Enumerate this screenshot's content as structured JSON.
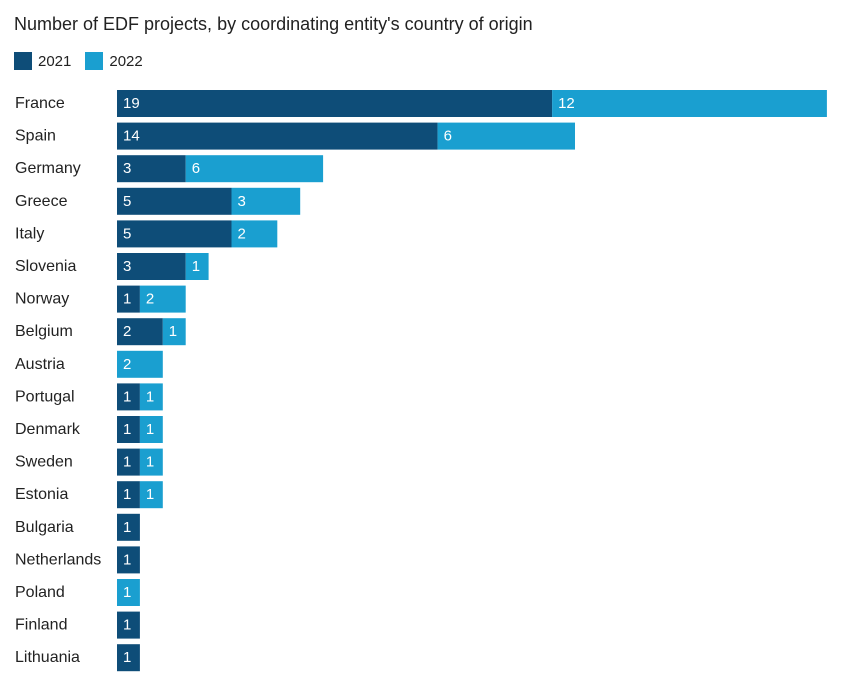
{
  "chart_data": {
    "type": "bar",
    "orientation": "horizontal",
    "stacked": true,
    "title": "Number of EDF projects, by coordinating entity's country of origin",
    "categories": [
      "France",
      "Spain",
      "Germany",
      "Greece",
      "Italy",
      "Slovenia",
      "Norway",
      "Belgium",
      "Austria",
      "Portugal",
      "Denmark",
      "Sweden",
      "Estonia",
      "Bulgaria",
      "Netherlands",
      "Poland",
      "Finland",
      "Lithuania"
    ],
    "series": [
      {
        "name": "2021",
        "color": "#0e4d78",
        "values": [
          19,
          14,
          3,
          5,
          5,
          3,
          1,
          2,
          0,
          1,
          1,
          1,
          1,
          1,
          1,
          0,
          1,
          1
        ]
      },
      {
        "name": "2022",
        "color": "#1a9fd0",
        "values": [
          12,
          6,
          6,
          3,
          2,
          1,
          2,
          1,
          2,
          1,
          1,
          1,
          1,
          0,
          0,
          1,
          0,
          0
        ]
      }
    ],
    "legend": "top-left",
    "grid": false
  }
}
